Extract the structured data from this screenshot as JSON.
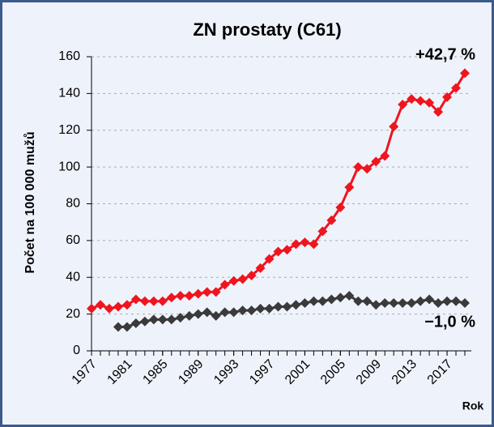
{
  "chart_data": {
    "type": "line",
    "title": "ZN prostaty (C61)",
    "y_label": "Počet na 100 000 mužů",
    "x_label": "Rok",
    "x": [
      1977,
      1978,
      1979,
      1980,
      1981,
      1982,
      1983,
      1984,
      1985,
      1986,
      1987,
      1988,
      1989,
      1990,
      1991,
      1992,
      1993,
      1994,
      1995,
      1996,
      1997,
      1998,
      1999,
      2000,
      2001,
      2002,
      2003,
      2004,
      2005,
      2006,
      2007,
      2008,
      2009,
      2010,
      2011,
      2012,
      2013,
      2014,
      2015,
      2016,
      2017,
      2018,
      2019
    ],
    "series": [
      {
        "name": "red",
        "color": "#f0141e",
        "values": [
          23,
          25,
          23,
          24,
          25,
          28,
          27,
          27,
          27,
          29,
          30,
          30,
          31,
          32,
          32,
          36,
          38,
          39,
          41,
          45,
          50,
          54,
          55,
          58,
          59,
          58,
          65,
          71,
          78,
          89,
          100,
          99,
          103,
          106,
          122,
          134,
          137,
          136,
          135,
          130,
          138,
          143,
          151
        ]
      },
      {
        "name": "grey",
        "color": "#3a3a3a",
        "values": [
          null,
          null,
          null,
          13,
          13,
          15,
          16,
          17,
          17,
          17,
          18,
          19,
          20,
          21,
          19,
          21,
          21,
          22,
          22,
          23,
          23,
          24,
          24,
          25,
          26,
          27,
          27,
          28,
          29,
          30,
          27,
          27,
          25,
          26,
          26,
          26,
          26,
          27,
          28,
          26,
          27,
          27,
          26
        ]
      }
    ],
    "annotations": [
      {
        "text": "+42,7 %",
        "color": "#f0141e"
      },
      {
        "text": "−1,0 %",
        "color": "#1a1a1a"
      }
    ],
    "xlim": [
      1977,
      2019
    ],
    "xticks": [
      1977,
      1981,
      1985,
      1989,
      1993,
      1997,
      2001,
      2005,
      2009,
      2013,
      2017
    ],
    "ylim": [
      0,
      160
    ],
    "yticks": [
      0,
      20,
      40,
      60,
      80,
      100,
      120,
      140,
      160
    ],
    "grid": true
  }
}
